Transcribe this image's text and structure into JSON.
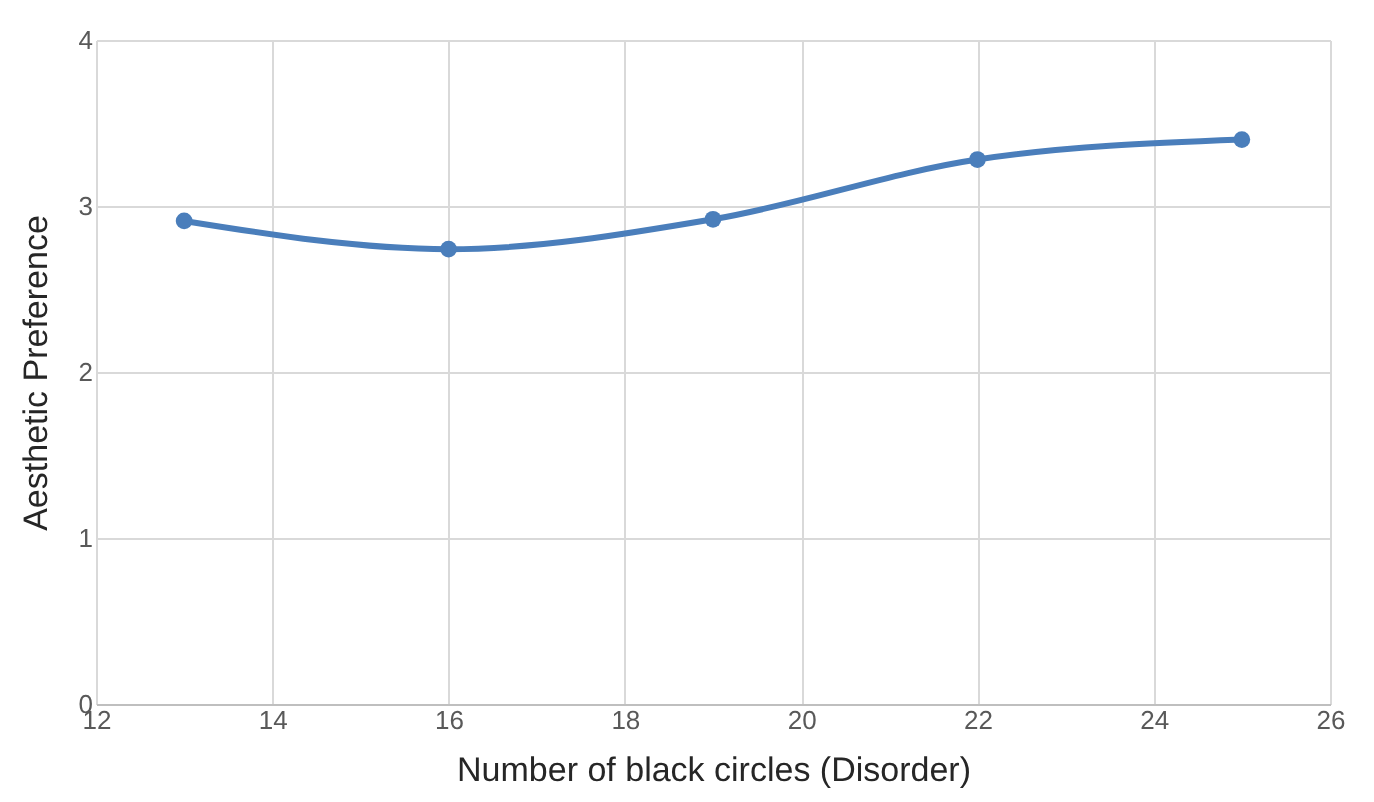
{
  "chart_data": {
    "type": "line",
    "xlabel": "Number of black circles (Disorder)",
    "ylabel": "Aesthetic Preference",
    "x": [
      13,
      16,
      19,
      22,
      25
    ],
    "series": [
      {
        "color": "#4a7ebb",
        "values": [
          2.91,
          2.74,
          2.92,
          3.28,
          3.4
        ]
      }
    ],
    "xlim": [
      12,
      26
    ],
    "xticks": [
      12,
      14,
      16,
      18,
      20,
      22,
      24,
      26
    ],
    "ylim": [
      0,
      4
    ],
    "yticks": [
      0,
      1,
      2,
      3,
      4
    ],
    "grid": true,
    "marker": "circle",
    "line_style": "solid"
  }
}
